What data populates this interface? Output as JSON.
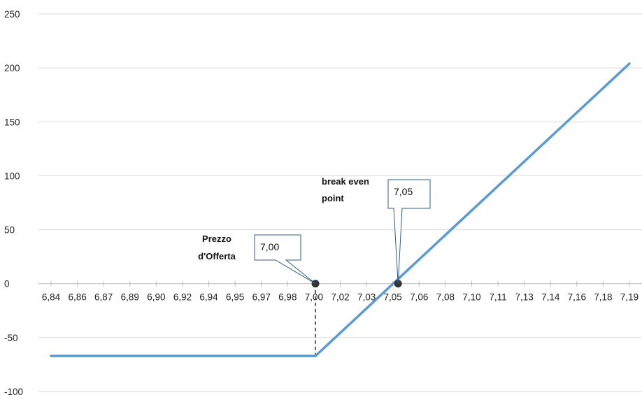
{
  "chart_data": {
    "type": "line",
    "title": "",
    "xlabel": "",
    "ylabel": "",
    "categories": [
      "6,84",
      "6,86",
      "6,87",
      "6,89",
      "6,90",
      "6,92",
      "6,94",
      "6,95",
      "6,97",
      "6,98",
      "7,00",
      "7,02",
      "7,03",
      "7,05",
      "7,06",
      "7,08",
      "7,10",
      "7,11",
      "7,13",
      "7,14",
      "7,16",
      "7,18",
      "7,19"
    ],
    "y_ticks": [
      250,
      200,
      150,
      100,
      50,
      0,
      -50,
      -100
    ],
    "y_tick_labels": [
      "250",
      "200",
      "150",
      "100",
      "50",
      "0",
      "-50",
      "-100"
    ],
    "ylim": [
      -100,
      250
    ],
    "grid": true,
    "legend": "none",
    "series": [
      {
        "x": [
          6.84,
          7.0,
          7.19
        ],
        "values": [
          -67,
          -67,
          204
        ]
      }
    ],
    "markers": [
      {
        "x": 7.0,
        "y": 0,
        "label": "Prezzo d'Offerta",
        "label_lines": [
          "Prezzo",
          "d'Offerta"
        ],
        "callout": "7,00"
      },
      {
        "x": 7.05,
        "y": 0,
        "label": "break even point",
        "label_lines": [
          "break even",
          "point"
        ],
        "callout": "7,05"
      }
    ],
    "dashed_drop": {
      "x": 7.0,
      "from_y": 0,
      "to_y": -67
    }
  },
  "colors": {
    "line": "#5b9bd5",
    "grid": "#d9d9d9",
    "axis": "#bfbfbf",
    "marker": "#333333",
    "callout_border": "#2e5f8a"
  }
}
